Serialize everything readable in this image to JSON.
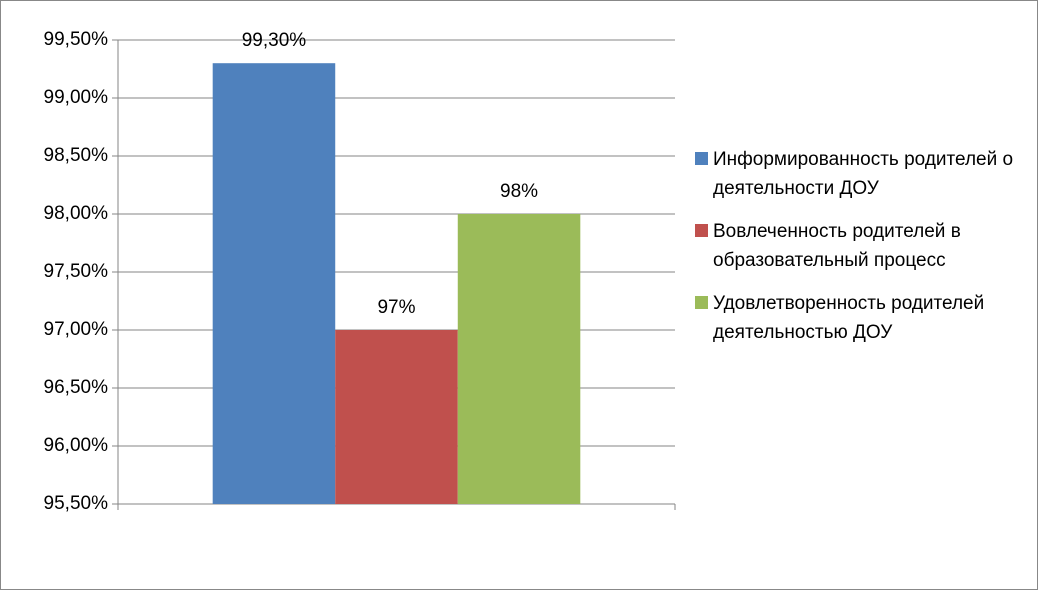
{
  "chart_data": {
    "type": "bar",
    "categories": [
      null
    ],
    "series": [
      {
        "name": "Информированность родителей о деятельности ДОУ",
        "color": "#4f81bd",
        "values": [
          99.3
        ],
        "value_labels": [
          "99,30%"
        ]
      },
      {
        "name": "Вовлеченность родителей в образовательный процесс",
        "color": "#c0504d",
        "values": [
          97
        ],
        "value_labels": [
          "97%"
        ]
      },
      {
        "name": "Удовлетворенность родителей деятельностью ДОУ",
        "color": "#9bbb59",
        "values": [
          98
        ],
        "value_labels": [
          "98%"
        ]
      }
    ],
    "ylim": [
      95.5,
      99.5
    ],
    "yticks": [
      {
        "value": 95.5,
        "label": "95,50%"
      },
      {
        "value": 96,
        "label": "96,00%"
      },
      {
        "value": 96.5,
        "label": "96,50%"
      },
      {
        "value": 97,
        "label": "97,00%"
      },
      {
        "value": 97.5,
        "label": "97,50%"
      },
      {
        "value": 98,
        "label": "98,00%"
      },
      {
        "value": 98.5,
        "label": "98,50%"
      },
      {
        "value": 99,
        "label": "99,00%"
      },
      {
        "value": 99.5,
        "label": "99,50%"
      }
    ],
    "grid": true,
    "legend": "right"
  }
}
